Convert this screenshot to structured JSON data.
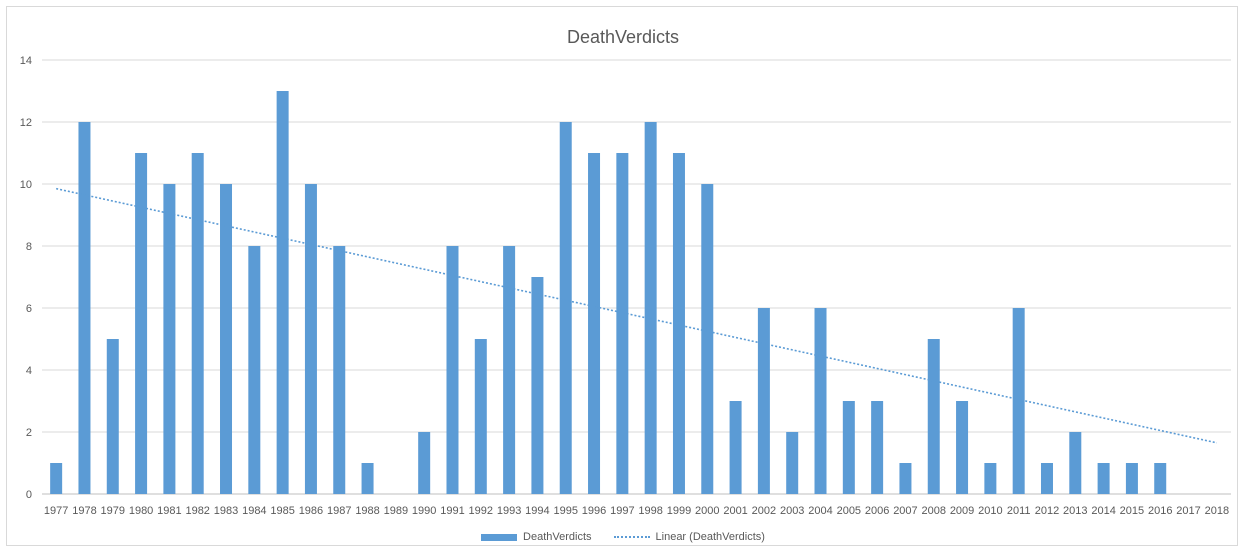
{
  "chart_data": {
    "type": "bar",
    "title": "DeathVerdicts",
    "xlabel": "",
    "ylabel": "",
    "ylim": [
      0,
      14
    ],
    "yticks": [
      0,
      2,
      4,
      6,
      8,
      10,
      12,
      14
    ],
    "grid": true,
    "legend_position": "bottom",
    "categories": [
      "1977",
      "1978",
      "1979",
      "1980",
      "1981",
      "1982",
      "1983",
      "1984",
      "1985",
      "1986",
      "1987",
      "1988",
      "1989",
      "1990",
      "1991",
      "1992",
      "1993",
      "1994",
      "1995",
      "1996",
      "1997",
      "1998",
      "1999",
      "2000",
      "2001",
      "2002",
      "2003",
      "2004",
      "2005",
      "2006",
      "2007",
      "2008",
      "2009",
      "2010",
      "2011",
      "2012",
      "2013",
      "2014",
      "2015",
      "2016",
      "2017",
      "2018"
    ],
    "series": [
      {
        "name": "DeathVerdicts",
        "type": "bar",
        "color": "#5b9bd5",
        "values": [
          1,
          12,
          5,
          11,
          10,
          11,
          10,
          8,
          13,
          10,
          8,
          1,
          0,
          2,
          8,
          5,
          8,
          7,
          12,
          11,
          11,
          12,
          11,
          10,
          3,
          6,
          2,
          6,
          3,
          3,
          1,
          5,
          3,
          1,
          6,
          1,
          2,
          1,
          1,
          1,
          0,
          0
        ]
      },
      {
        "name": "Linear (DeathVerdicts)",
        "type": "trendline",
        "style": "dotted",
        "color": "#5b9bd5",
        "start_value": 9.85,
        "end_value": 1.65
      }
    ]
  }
}
